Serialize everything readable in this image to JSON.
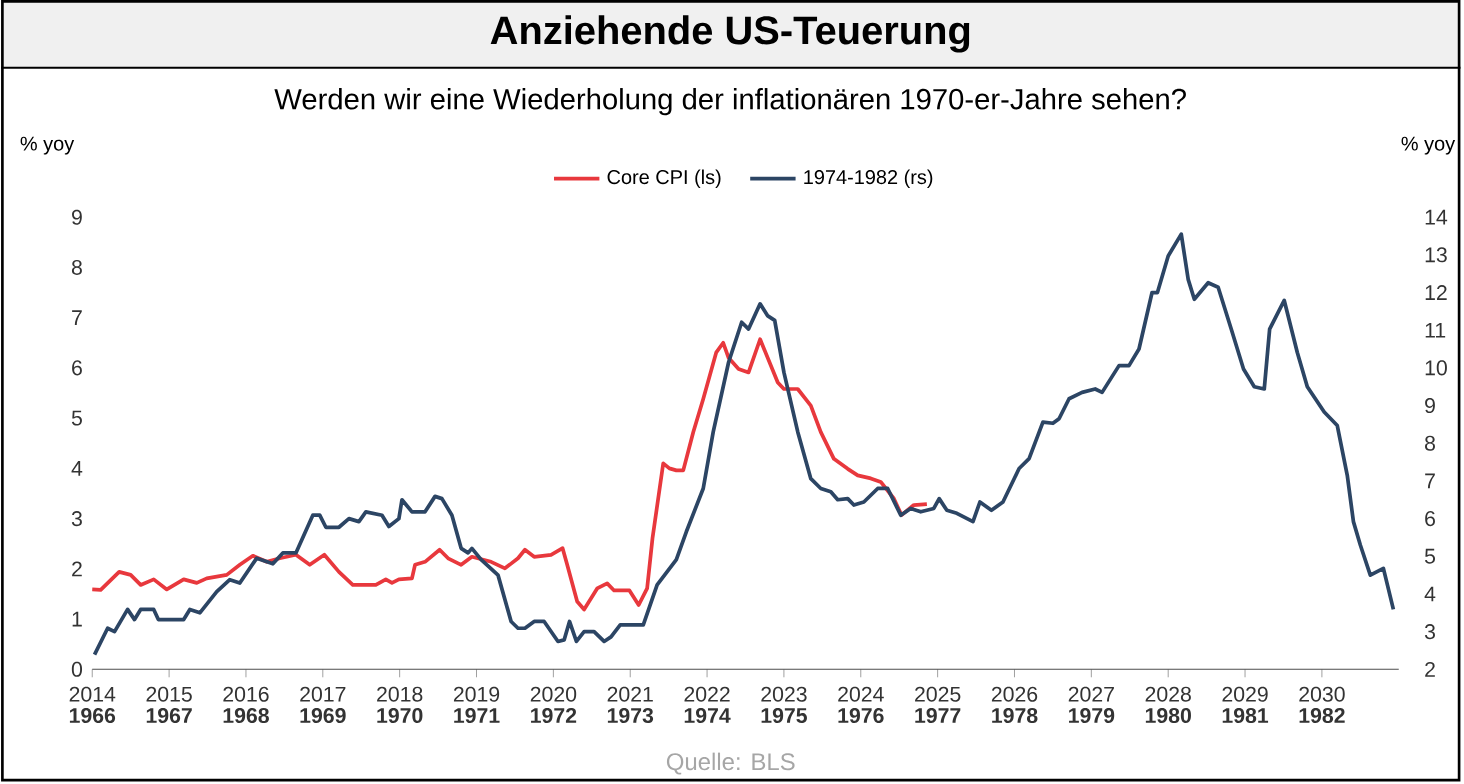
{
  "chart_data": {
    "type": "line",
    "title": "Anziehende US-Teuerung",
    "subtitle": "Werden wir eine Wiederholung der inflationären 1970-er-Jahre sehen?",
    "ylabel": "% yoy",
    "y2label": "% yoy",
    "annotations": [
      "Quelle: BLS"
    ],
    "xlim": [
      2014,
      2031
    ],
    "xticks": [
      2014,
      2015,
      2016,
      2017,
      2018,
      2019,
      2020,
      2021,
      2022,
      2023,
      2024,
      2025,
      2026,
      2027,
      2028,
      2029,
      2030
    ],
    "x2lim": [
      1966,
      1983
    ],
    "x2ticks": [
      1966,
      1967,
      1968,
      1969,
      1970,
      1971,
      1972,
      1973,
      1974,
      1975,
      1976,
      1977,
      1978,
      1979,
      1980,
      1981,
      1982
    ],
    "ylim": [
      0,
      9
    ],
    "yticks": [
      0,
      1,
      2,
      3,
      4,
      5,
      6,
      7,
      8,
      9
    ],
    "y2lim": [
      2,
      14
    ],
    "y2ticks": [
      2,
      3,
      4,
      5,
      6,
      7,
      8,
      9,
      10,
      11,
      12,
      13,
      14
    ],
    "legend": "top",
    "grid": false,
    "marker": "none",
    "line_style": "solid",
    "series": [
      {
        "name": "Core CPI (ls)",
        "color": "#e8383d",
        "x": [
          2014.0,
          2014.11,
          2014.35,
          2014.5,
          2014.63,
          2014.8,
          2014.97,
          2015.19,
          2015.36,
          2015.49,
          2015.75,
          2015.92,
          2016.09,
          2016.27,
          2016.44,
          2016.65,
          2016.83,
          2017.02,
          2017.21,
          2017.39,
          2017.69,
          2017.82,
          2017.9,
          2017.99,
          2018.16,
          2018.2,
          2018.33,
          2018.52,
          2018.63,
          2018.8,
          2018.94,
          2019.19,
          2019.37,
          2019.54,
          2019.63,
          2019.75,
          2019.97,
          2020.12,
          2020.18,
          2020.31,
          2020.4,
          2020.57,
          2020.7,
          2020.79,
          2020.99,
          2021.11,
          2021.22,
          2021.29,
          2021.43,
          2021.51,
          2021.6,
          2021.69,
          2021.82,
          2021.95,
          2022.12,
          2022.21,
          2022.28,
          2022.41,
          2022.54,
          2022.69,
          2022.92,
          2023.0,
          2023.18,
          2023.35,
          2023.48,
          2023.65,
          2023.83,
          2023.96,
          2024.13,
          2024.26,
          2024.43,
          2024.53,
          2024.69,
          2024.86
        ],
        "values": [
          1.59,
          1.58,
          1.94,
          1.88,
          1.68,
          1.79,
          1.59,
          1.79,
          1.72,
          1.81,
          1.88,
          2.08,
          2.26,
          2.14,
          2.21,
          2.28,
          2.08,
          2.28,
          1.94,
          1.68,
          1.68,
          1.79,
          1.72,
          1.79,
          1.81,
          2.08,
          2.14,
          2.38,
          2.21,
          2.08,
          2.24,
          2.14,
          2.01,
          2.21,
          2.38,
          2.24,
          2.28,
          2.41,
          2.08,
          1.35,
          1.19,
          1.61,
          1.71,
          1.57,
          1.57,
          1.28,
          1.61,
          2.61,
          4.1,
          4.0,
          3.96,
          3.96,
          4.72,
          5.38,
          6.31,
          6.5,
          6.2,
          5.98,
          5.91,
          6.57,
          5.71,
          5.58,
          5.58,
          5.25,
          4.72,
          4.19,
          3.99,
          3.86,
          3.8,
          3.73,
          3.4,
          3.07,
          3.27,
          3.29
        ]
      },
      {
        "name": "1974-1982 (rs)",
        "color": "#2c4564",
        "axis": "y2",
        "x": [
          2014.03,
          2014.2,
          2014.29,
          2014.46,
          2014.55,
          2014.63,
          2014.8,
          2014.86,
          2015.19,
          2015.27,
          2015.4,
          2015.62,
          2015.79,
          2015.92,
          2016.14,
          2016.35,
          2016.48,
          2016.65,
          2016.87,
          2016.96,
          2017.04,
          2017.21,
          2017.34,
          2017.47,
          2017.56,
          2017.77,
          2017.86,
          2017.99,
          2018.03,
          2018.16,
          2018.33,
          2018.46,
          2018.55,
          2018.68,
          2018.8,
          2018.89,
          2018.94,
          2019.06,
          2019.28,
          2019.45,
          2019.54,
          2019.63,
          2019.75,
          2019.88,
          2020.06,
          2020.14,
          2020.21,
          2020.3,
          2020.4,
          2020.53,
          2020.66,
          2020.75,
          2020.87,
          2021.17,
          2021.35,
          2021.6,
          2021.73,
          2021.95,
          2022.08,
          2022.28,
          2022.45,
          2022.54,
          2022.69,
          2022.79,
          2022.88,
          2023.0,
          2023.18,
          2023.35,
          2023.48,
          2023.61,
          2023.7,
          2023.83,
          2023.91,
          2024.04,
          2024.22,
          2024.35,
          2024.52,
          2024.65,
          2024.78,
          2024.95,
          2025.02,
          2025.12,
          2025.25,
          2025.46,
          2025.55,
          2025.7,
          2025.85,
          2026.06,
          2026.19,
          2026.37,
          2026.5,
          2026.58,
          2026.71,
          2026.88,
          2027.05,
          2027.14,
          2027.36,
          2027.49,
          2027.62,
          2027.79,
          2027.86,
          2028.0,
          2028.17,
          2028.26,
          2028.34,
          2028.52,
          2028.65,
          2028.82,
          2028.98,
          2029.12,
          2029.25,
          2029.32,
          2029.51,
          2029.68,
          2029.81,
          2030.03,
          2030.2,
          2030.33,
          2030.41,
          2030.5,
          2030.63,
          2030.8,
          2030.93
        ],
        "values": [
          2.39,
          3.09,
          3.0,
          3.59,
          3.32,
          3.59,
          3.59,
          3.32,
          3.32,
          3.59,
          3.5,
          4.06,
          4.38,
          4.29,
          4.95,
          4.8,
          5.09,
          5.09,
          6.09,
          6.09,
          5.77,
          5.77,
          6.0,
          5.92,
          6.18,
          6.09,
          5.79,
          6.0,
          6.5,
          6.18,
          6.18,
          6.59,
          6.53,
          6.09,
          5.21,
          5.09,
          5.21,
          4.91,
          4.5,
          3.27,
          3.09,
          3.09,
          3.27,
          3.27,
          2.74,
          2.78,
          3.27,
          2.74,
          3.0,
          3.0,
          2.74,
          2.86,
          3.18,
          3.18,
          4.24,
          4.91,
          5.65,
          6.8,
          8.3,
          10.15,
          11.21,
          11.03,
          11.7,
          11.38,
          11.26,
          9.88,
          8.3,
          7.06,
          6.8,
          6.71,
          6.5,
          6.53,
          6.36,
          6.44,
          6.8,
          6.8,
          6.09,
          6.27,
          6.18,
          6.27,
          6.53,
          6.22,
          6.14,
          5.92,
          6.44,
          6.22,
          6.44,
          7.33,
          7.59,
          8.56,
          8.53,
          8.65,
          9.18,
          9.35,
          9.44,
          9.35,
          10.06,
          10.06,
          10.5,
          12.0,
          12.0,
          12.97,
          13.55,
          12.35,
          11.82,
          12.26,
          12.14,
          11.03,
          9.97,
          9.5,
          9.44,
          11.03,
          11.79,
          10.41,
          9.5,
          8.83,
          8.47,
          7.15,
          5.92,
          5.3,
          4.5,
          4.68,
          3.59
        ]
      }
    ]
  }
}
